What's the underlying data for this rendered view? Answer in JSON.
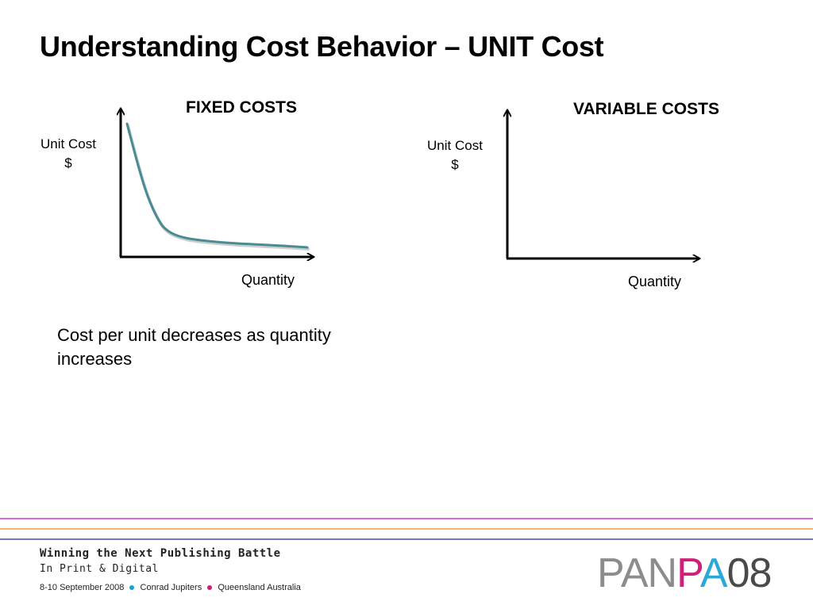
{
  "slide": {
    "title": "Understanding Cost Behavior – UNIT Cost"
  },
  "charts": {
    "fixed": {
      "title": "FIXED COSTS",
      "ylabel_line1": "Unit Cost",
      "ylabel_line2": "$",
      "xlabel": "Quantity"
    },
    "variable": {
      "title": "VARIABLE COSTS",
      "ylabel_line1": "Unit Cost",
      "ylabel_line2": "$",
      "xlabel": "Quantity"
    }
  },
  "note": "Cost per unit decreases as quantity increases",
  "footer": {
    "line1": "Winning the Next Publishing Battle",
    "line2": "In Print & Digital",
    "event_date": "8-10 September 2008",
    "venue": "Conrad Jupiters",
    "location": "Queensland Australia",
    "dot_colors": [
      "#19a0d8",
      "#d6187e"
    ],
    "rule_colors": [
      "#c23fc6",
      "#f0a030",
      "#3a4fc0"
    ],
    "logo_prefix": "PAN",
    "logo_colored_letters": [
      {
        "char": "P",
        "color": "#d01e7a"
      },
      {
        "char": "A",
        "color": "#2aa8d8"
      }
    ],
    "logo_year": "08"
  },
  "colors": {
    "curve": "#4a8c94",
    "curve_shadow": "#b8b8b8",
    "axis": "#000000"
  }
}
